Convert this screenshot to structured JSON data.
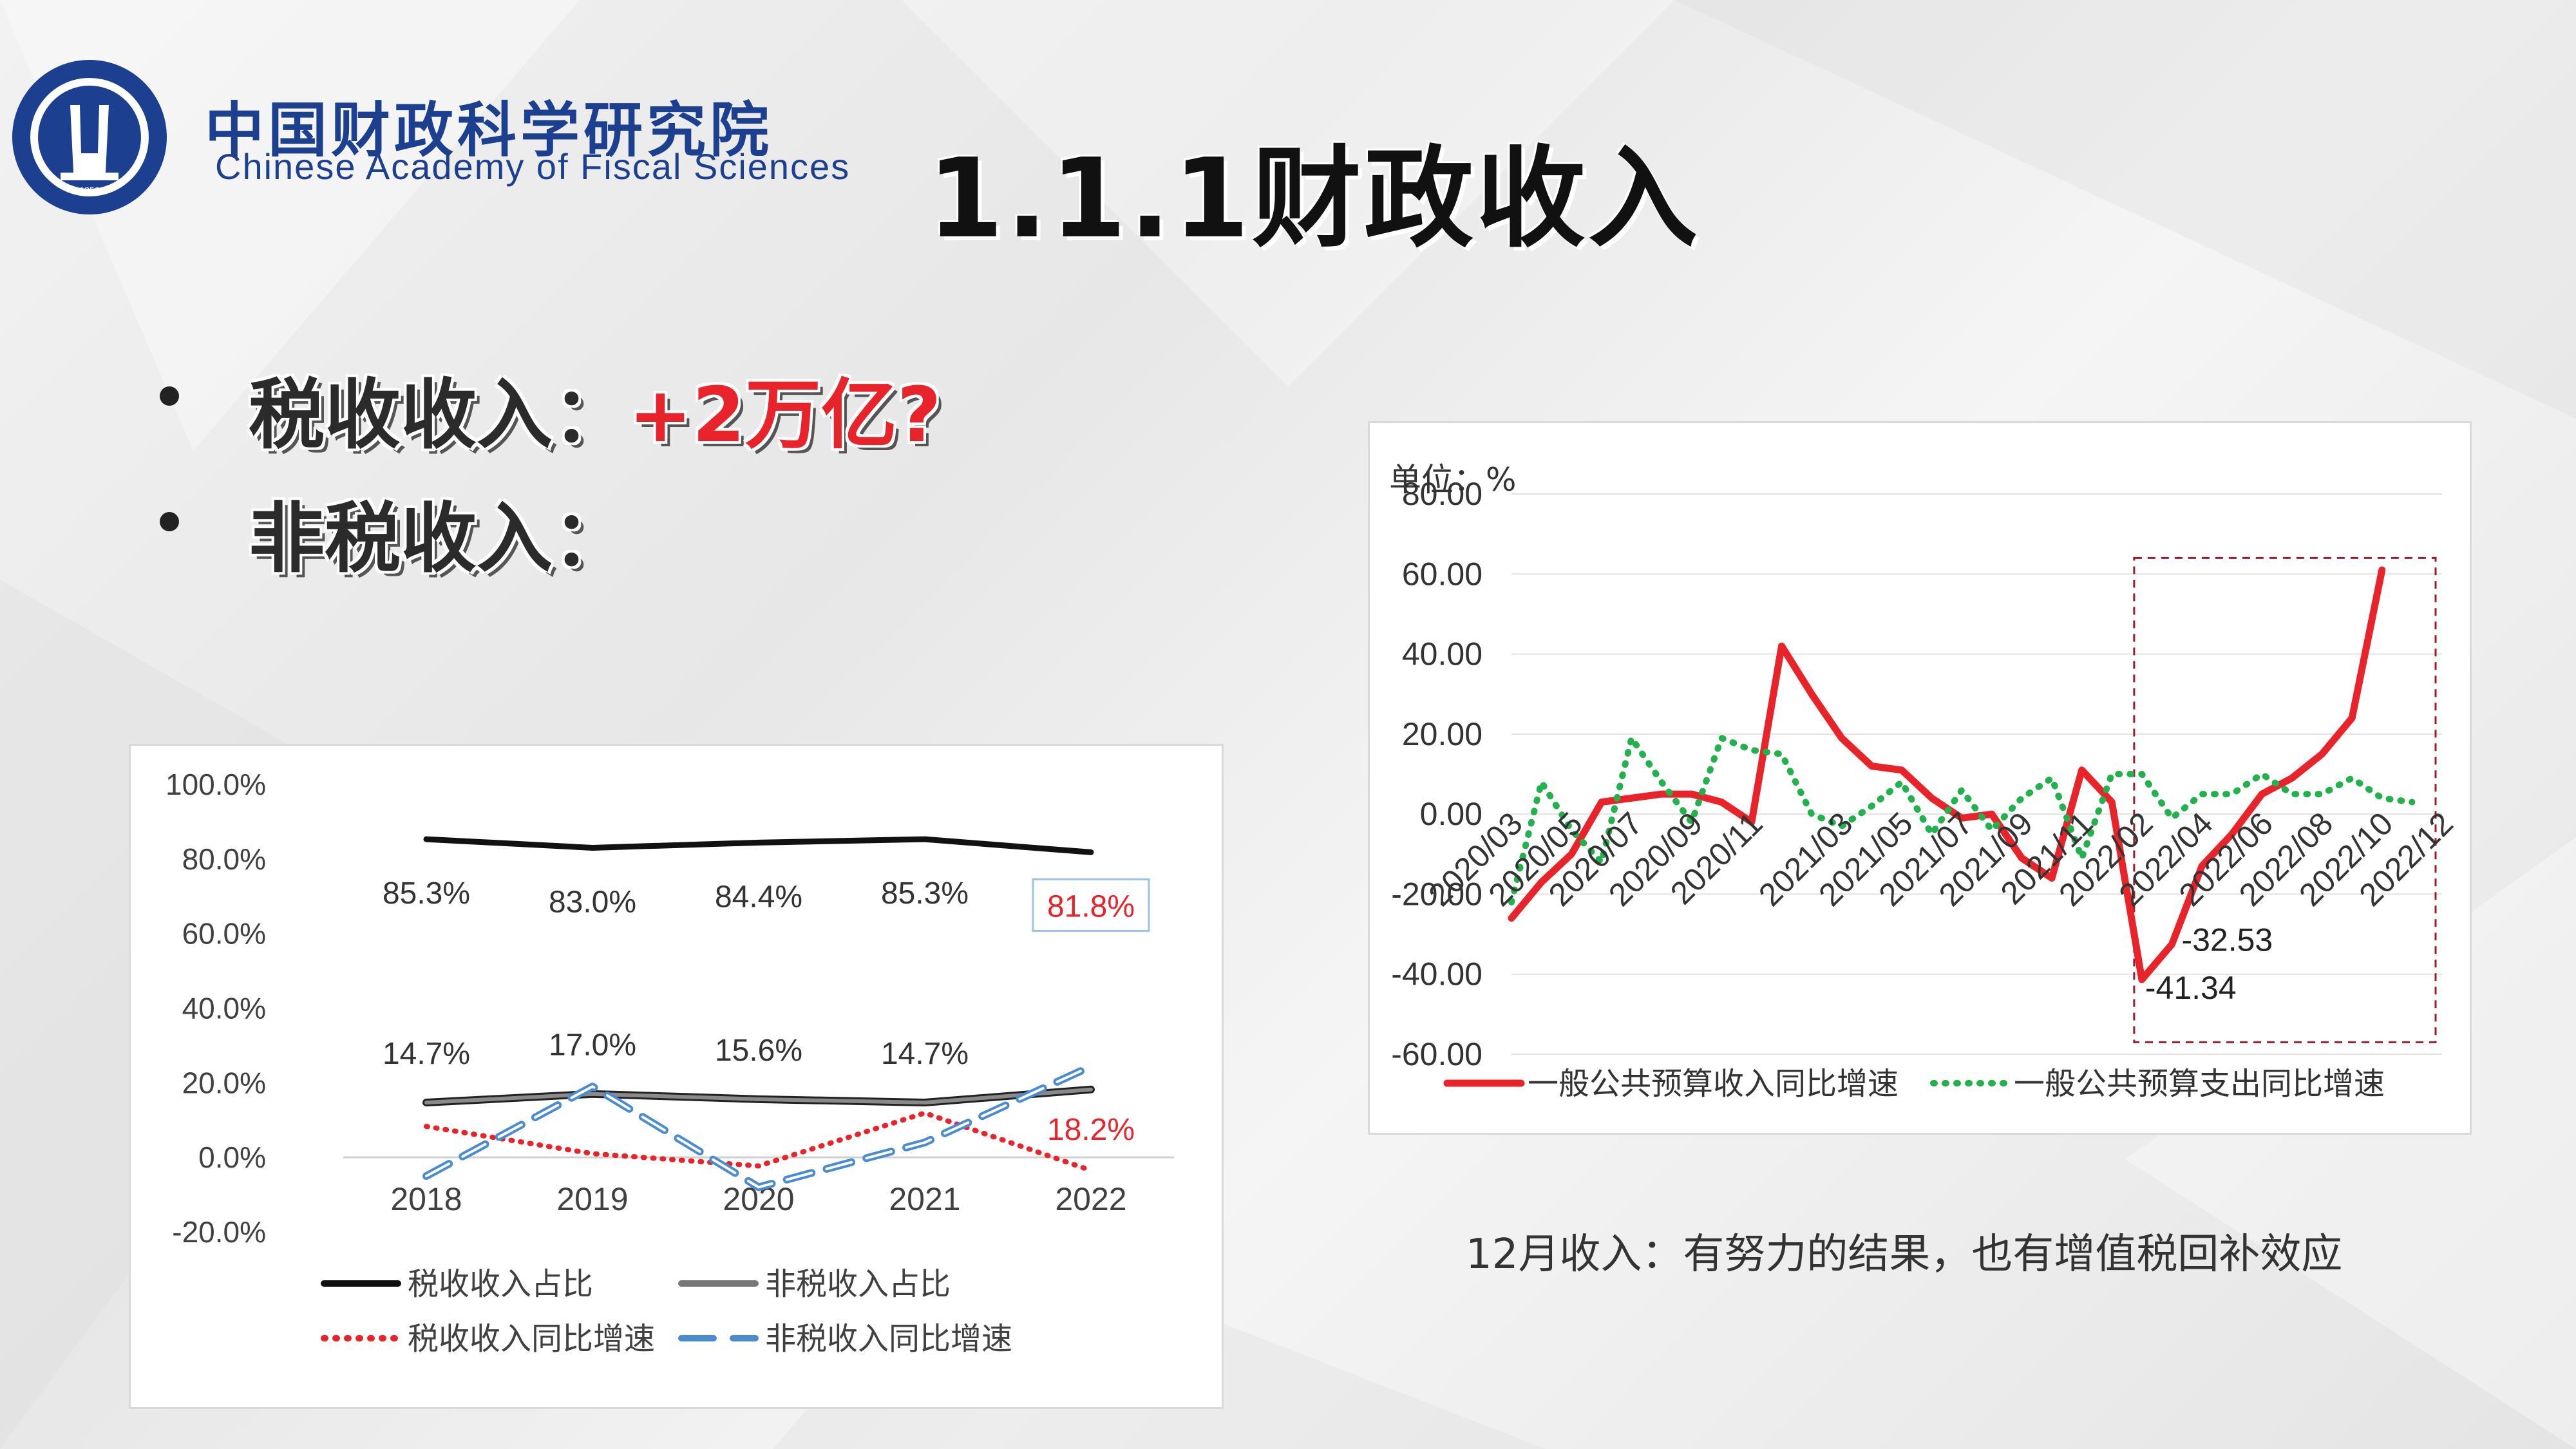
{
  "header": {
    "org_cn": "中国财政科学研究院",
    "org_en": "Chinese Academy of Fiscal Sciences",
    "title": "1.1.1财政收入"
  },
  "bullets": [
    {
      "label": "税收收入：",
      "highlight": "+2万亿?"
    },
    {
      "label": "非税收入：",
      "highlight": ""
    }
  ],
  "caption": "12月收入：有努力的结果，也有增值税回补效应",
  "colors": {
    "accent_red": "#e8232a",
    "green": "#22b14c",
    "navy": "#1d3f8f",
    "blue_dash": "#4a8ccf"
  },
  "chart_data": [
    {
      "type": "line",
      "categories": [
        "2018",
        "2019",
        "2020",
        "2021",
        "2022"
      ],
      "ylim": [
        -20,
        100
      ],
      "yticks": [
        "100.0%",
        "80.0%",
        "60.0%",
        "40.0%",
        "20.0%",
        "0.0%",
        "-20.0%"
      ],
      "series": [
        {
          "name": "税收收入占比",
          "values": [
            85.3,
            83.0,
            84.4,
            85.3,
            81.8
          ],
          "labels": [
            "85.3%",
            "83.0%",
            "84.4%",
            "85.3%",
            "81.8%"
          ],
          "color": "#111111",
          "style": "solid"
        },
        {
          "name": "非税收入占比",
          "values": [
            14.7,
            17.0,
            15.6,
            14.7,
            18.2
          ],
          "labels": [
            "14.7%",
            "17.0%",
            "15.6%",
            "14.7%",
            "18.2%"
          ],
          "color": "#555555",
          "style": "solid"
        },
        {
          "name": "税收收入同比增速",
          "values": [
            8.3,
            1.0,
            -2.3,
            11.9,
            -3.5
          ],
          "color": "#e8232a",
          "style": "dotted"
        },
        {
          "name": "非税收入同比增速",
          "values": [
            -5.0,
            19.0,
            -8.0,
            4.0,
            24.4
          ],
          "color": "#4a8ccf",
          "style": "dashed"
        }
      ]
    },
    {
      "type": "line",
      "unit_label": "单位：%",
      "ylim": [
        -60,
        80
      ],
      "yticks": [
        "80.00",
        "60.00",
        "40.00",
        "20.00",
        "0.00",
        "-20.00",
        "-40.00",
        "-60.00"
      ],
      "x_tick_labels": [
        "2020/03",
        "2020/05",
        "2020/07",
        "2020/09",
        "2020/11",
        "2021/03",
        "2021/05",
        "2021/07",
        "2021/09",
        "2021/11",
        "2022/02",
        "2022/04",
        "2022/06",
        "2022/08",
        "2022/10",
        "2022/12"
      ],
      "x": [
        "2020/03",
        "2020/04",
        "2020/05",
        "2020/06",
        "2020/07",
        "2020/08",
        "2020/09",
        "2020/10",
        "2020/11",
        "2020/12",
        "2021/02",
        "2021/03",
        "2021/04",
        "2021/05",
        "2021/06",
        "2021/07",
        "2021/08",
        "2021/09",
        "2021/10",
        "2021/11",
        "2021/12",
        "2022/02",
        "2022/03",
        "2022/04",
        "2022/05",
        "2022/06",
        "2022/07",
        "2022/08",
        "2022/09",
        "2022/10",
        "2022/11",
        "2022/12"
      ],
      "series": [
        {
          "name": "一般公共预算收入同比增速",
          "color": "#e8232a",
          "style": "solid",
          "values": [
            -26,
            -17,
            -10,
            3,
            4,
            5,
            5,
            3,
            -2,
            42,
            30,
            19,
            12,
            11,
            4,
            -1,
            0,
            -11,
            -16,
            11,
            3,
            -41.34,
            -32.53,
            -13,
            -5,
            5,
            9,
            15,
            24,
            61,
            null,
            null
          ]
        },
        {
          "name": "一般公共预算支出同比增速",
          "color": "#22b14c",
          "style": "dotted",
          "values": [
            -22,
            8,
            -4,
            -12,
            19,
            8,
            -2,
            19,
            16,
            15,
            0,
            -3,
            2,
            8,
            -5,
            6,
            -4,
            4,
            9,
            -11,
            10,
            10,
            -1,
            5,
            5,
            10,
            5,
            5,
            9,
            4,
            3,
            null
          ]
        }
      ],
      "annotations": [
        "-41.34",
        "-32.53"
      ]
    }
  ]
}
